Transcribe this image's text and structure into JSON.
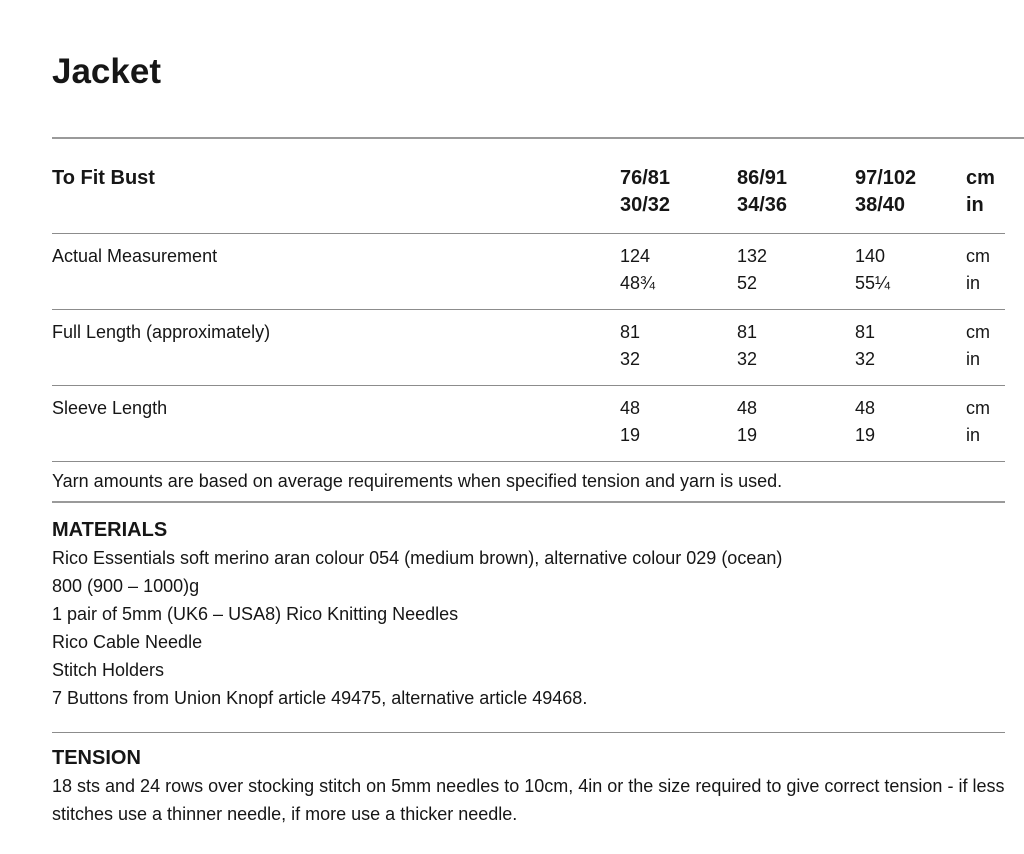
{
  "page": {
    "title": "Jacket"
  },
  "table": {
    "header": {
      "label": "To Fit Bust",
      "sizes": [
        {
          "cm": "76/81",
          "in": "30/32"
        },
        {
          "cm": "86/91",
          "in": "34/36"
        },
        {
          "cm": "97/102",
          "in": "38/40"
        }
      ],
      "units": {
        "cm": "cm",
        "in": "in"
      }
    },
    "rows": [
      {
        "label": "Actual Measurement",
        "values": [
          {
            "cm": "124",
            "in": "48¾"
          },
          {
            "cm": "132",
            "in": "52"
          },
          {
            "cm": "140",
            "in": "55¼"
          }
        ],
        "units": {
          "cm": "cm",
          "in": "in"
        }
      },
      {
        "label": "Full Length (approximately)",
        "values": [
          {
            "cm": "81",
            "in": "32"
          },
          {
            "cm": "81",
            "in": "32"
          },
          {
            "cm": "81",
            "in": "32"
          }
        ],
        "units": {
          "cm": "cm",
          "in": "in"
        }
      },
      {
        "label": "Sleeve Length",
        "values": [
          {
            "cm": "48",
            "in": "19"
          },
          {
            "cm": "48",
            "in": "19"
          },
          {
            "cm": "48",
            "in": "19"
          }
        ],
        "units": {
          "cm": "cm",
          "in": "in"
        }
      }
    ],
    "footnote": "Yarn amounts are based on average requirements when specified tension and yarn is used."
  },
  "materials": {
    "heading": "MATERIALS",
    "lines": [
      "Rico Essentials soft merino aran colour 054 (medium brown), alternative colour 029 (ocean)",
      "800 (900 – 1000)g",
      "1 pair of 5mm (UK6 – USA8) Rico Knitting Needles",
      "Rico Cable Needle",
      "Stitch Holders",
      "7 Buttons from Union Knopf article 49475, alternative article 49468."
    ]
  },
  "tension": {
    "heading": "TENSION",
    "paragraph": "18 sts and 24 rows over stocking stitch on 5mm needles to 10cm, 4in or the size required to give correct tension - if less stitches use a thinner needle, if more use a thicker needle."
  }
}
